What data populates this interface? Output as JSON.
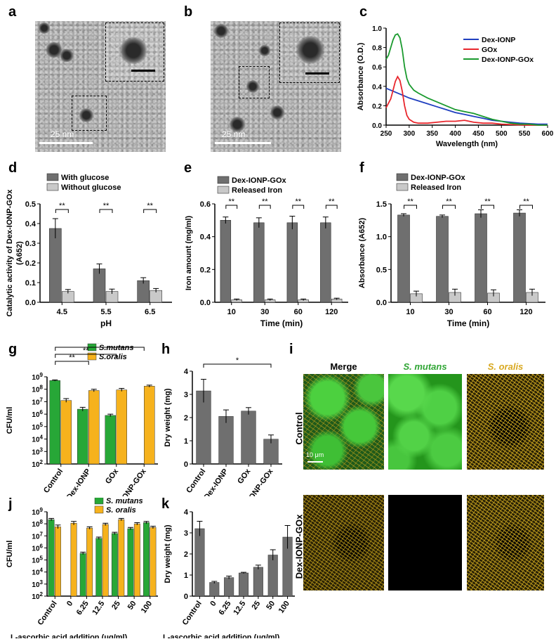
{
  "panel_labels": {
    "a": "a",
    "b": "b",
    "c": "c",
    "d": "d",
    "e": "e",
    "f": "f",
    "g": "g",
    "h": "h",
    "i": "i",
    "j": "j",
    "k": "k"
  },
  "tem": {
    "a_scale_text": "25 nm",
    "b_scale_text": "25 nm"
  },
  "micrographs": {
    "col_merge": "Merge",
    "col_smutans": "S. mutans",
    "col_soralis": "S. oralis",
    "row_control": "Control",
    "row_treated": "Dex-IONP-GOx",
    "scale_text": "10 μm",
    "colors": {
      "green": "#35b233",
      "yellow": "#d9b21a",
      "black": "#000000"
    }
  },
  "colors": {
    "dex_ionp": "#1f3fbf",
    "gox": "#e8262c",
    "dex_ionp_gox": "#1a9a2e",
    "dark_bar": "#6f6f6f",
    "light_bar": "#c9c9c9",
    "smutans": "#27a737",
    "soralis": "#f6b21d"
  },
  "chart_data": [
    {
      "id": "c",
      "type": "line",
      "xlabel": "Wavelength (nm)",
      "ylabel": "Absorbance (O.D.)",
      "xlim": [
        250,
        600
      ],
      "ylim": [
        0.0,
        1.0
      ],
      "xticks": [
        "250",
        "300",
        "350",
        "400",
        "450",
        "500",
        "550",
        "600"
      ],
      "yticks": [
        "0.0",
        "0.2",
        "0.4",
        "0.6",
        "0.8",
        "1.0"
      ],
      "legend_position": "top-right",
      "series": [
        {
          "name": "Dex-IONP",
          "color": "#1f3fbf",
          "x": [
            250,
            260,
            270,
            280,
            290,
            300,
            320,
            340,
            360,
            380,
            400,
            420,
            440,
            460,
            480,
            500,
            520,
            540,
            560,
            580,
            600
          ],
          "y": [
            0.38,
            0.36,
            0.34,
            0.32,
            0.3,
            0.28,
            0.25,
            0.22,
            0.19,
            0.16,
            0.13,
            0.11,
            0.09,
            0.07,
            0.05,
            0.04,
            0.03,
            0.02,
            0.015,
            0.01,
            0.01
          ]
        },
        {
          "name": "GOx",
          "color": "#e8262c",
          "x": [
            250,
            260,
            265,
            270,
            275,
            280,
            285,
            290,
            295,
            300,
            310,
            320,
            340,
            360,
            380,
            400,
            420,
            440,
            460,
            480,
            500,
            550,
            600
          ],
          "y": [
            0.18,
            0.27,
            0.36,
            0.45,
            0.5,
            0.46,
            0.35,
            0.2,
            0.1,
            0.06,
            0.03,
            0.02,
            0.02,
            0.03,
            0.04,
            0.04,
            0.05,
            0.03,
            0.02,
            0.02,
            0.01,
            0.0,
            0.0
          ]
        },
        {
          "name": "Dex-IONP-GOx",
          "color": "#1a9a2e",
          "x": [
            250,
            255,
            260,
            265,
            270,
            275,
            280,
            285,
            290,
            295,
            300,
            310,
            320,
            340,
            360,
            380,
            400,
            420,
            440,
            460,
            480,
            500,
            520,
            540,
            560,
            580,
            600
          ],
          "y": [
            0.68,
            0.72,
            0.8,
            0.88,
            0.93,
            0.94,
            0.9,
            0.78,
            0.6,
            0.48,
            0.42,
            0.36,
            0.33,
            0.28,
            0.24,
            0.2,
            0.16,
            0.14,
            0.12,
            0.09,
            0.06,
            0.04,
            0.02,
            0.01,
            0.01,
            0.0,
            0.0
          ]
        }
      ]
    },
    {
      "id": "d",
      "type": "bar",
      "xlabel": "pH",
      "ylabel": "Catalytic activity of Dex-IONP-GOx",
      "ylabel2": "(A652)",
      "categories": [
        "4.5",
        "5.5",
        "6.5"
      ],
      "ylim": [
        0.0,
        0.5
      ],
      "yticks": [
        "0.0",
        "0.1",
        "0.2",
        "0.3",
        "0.4",
        "0.5"
      ],
      "legend_position": "top",
      "series": [
        {
          "name": "With glucose",
          "values": [
            0.375,
            0.17,
            0.11
          ],
          "errors": [
            0.05,
            0.025,
            0.015
          ]
        },
        {
          "name": "Without glucose",
          "values": [
            0.055,
            0.055,
            0.06
          ],
          "errors": [
            0.01,
            0.012,
            0.01
          ]
        }
      ],
      "significance": [
        "**",
        "**",
        "**"
      ]
    },
    {
      "id": "e",
      "type": "bar",
      "xlabel": "Time (min)",
      "ylabel": "Iron amount (mg/ml)",
      "categories": [
        "10",
        "30",
        "60",
        "120"
      ],
      "ylim": [
        0.0,
        0.6
      ],
      "yticks": [
        "0.0",
        "0.2",
        "0.4",
        "0.6"
      ],
      "legend_position": "top",
      "series": [
        {
          "name": "Dex-IONP-GOx",
          "values": [
            0.5,
            0.485,
            0.485,
            0.485
          ],
          "errors": [
            0.02,
            0.03,
            0.04,
            0.035
          ]
        },
        {
          "name": "Released Iron",
          "values": [
            0.015,
            0.015,
            0.015,
            0.02
          ],
          "errors": [
            0.005,
            0.005,
            0.005,
            0.005
          ]
        }
      ],
      "significance": [
        "**",
        "**",
        "**",
        "**"
      ]
    },
    {
      "id": "f",
      "type": "bar",
      "xlabel": "Time (min)",
      "ylabel": "Absorbance (A652)",
      "categories": [
        "10",
        "30",
        "60",
        "120"
      ],
      "ylim": [
        0.0,
        1.5
      ],
      "yticks": [
        "0.0",
        "0.5",
        "1.0",
        "1.5"
      ],
      "legend_position": "top",
      "series": [
        {
          "name": "Dex-IONP-GOx",
          "values": [
            1.33,
            1.31,
            1.35,
            1.36
          ],
          "errors": [
            0.02,
            0.02,
            0.06,
            0.05
          ]
        },
        {
          "name": "Released Iron",
          "values": [
            0.13,
            0.15,
            0.14,
            0.15
          ],
          "errors": [
            0.04,
            0.05,
            0.05,
            0.05
          ]
        }
      ],
      "significance": [
        "**",
        "**",
        "**",
        "**"
      ]
    },
    {
      "id": "g",
      "type": "bar",
      "scale": "log",
      "ylabel": "CFU/ml",
      "categories": [
        "Control",
        "Dex-IONP",
        "GOx",
        "Dex-IONP-GOx"
      ],
      "yticks": [
        "10^2",
        "10^3",
        "10^4",
        "10^5",
        "10^6",
        "10^7",
        "10^8",
        "10^9"
      ],
      "ylog_range": [
        2,
        9
      ],
      "legend_position": "top-right",
      "series": [
        {
          "name": "S.mutans",
          "log_values": [
            8.7,
            6.4,
            5.9,
            null
          ],
          "log_errors": [
            0.05,
            0.15,
            0.1,
            0
          ]
        },
        {
          "name": "S.oralis",
          "log_values": [
            7.1,
            7.9,
            7.95,
            8.25
          ],
          "log_errors": [
            0.15,
            0.1,
            0.12,
            0.08
          ]
        }
      ],
      "significance_brackets": [
        {
          "from": 0,
          "to": 1,
          "label": "**"
        },
        {
          "from": 0,
          "to": 2,
          "label": "**"
        },
        {
          "from": 0,
          "to": 3,
          "label": "**"
        }
      ]
    },
    {
      "id": "h",
      "type": "bar",
      "ylabel": "Dry weight (mg)",
      "categories": [
        "Control",
        "Dex-IONP",
        "GOx",
        "Dex-IONP-GOx"
      ],
      "ylim": [
        0,
        4
      ],
      "yticks": [
        "0",
        "1",
        "2",
        "3",
        "4"
      ],
      "series": [
        {
          "name": "",
          "values": [
            3.15,
            2.05,
            2.28,
            1.07
          ],
          "errors": [
            0.5,
            0.28,
            0.15,
            0.18
          ]
        }
      ],
      "significance_brackets": [
        {
          "from": 0,
          "to": 3,
          "label": "*"
        }
      ]
    },
    {
      "id": "j",
      "type": "bar",
      "scale": "log",
      "ylabel": "CFU/ml",
      "xlabel": "L-ascorbic acid addition (μg/ml)",
      "categories": [
        "Control",
        "0",
        "6.25",
        "12.5",
        "25",
        "50",
        "100"
      ],
      "yticks": [
        "10^2",
        "10^3",
        "10^4",
        "10^5",
        "10^6",
        "10^7",
        "10^8",
        "10^9"
      ],
      "ylog_range": [
        2,
        9
      ],
      "legend_position": "top-right",
      "series": [
        {
          "name": "S. mutans",
          "log_values": [
            8.35,
            null,
            5.55,
            6.8,
            7.2,
            7.6,
            8.1
          ],
          "log_errors": [
            0.1,
            0,
            0.1,
            0.1,
            0.1,
            0.1,
            0.1
          ]
        },
        {
          "name": "S. oralis",
          "log_values": [
            7.75,
            8.05,
            7.65,
            7.95,
            8.35,
            8.0,
            7.7
          ],
          "log_errors": [
            0.15,
            0.15,
            0.1,
            0.1,
            0.1,
            0.1,
            0.1
          ]
        }
      ]
    },
    {
      "id": "k",
      "type": "bar",
      "ylabel": "Dry weight (mg)",
      "xlabel": "L-ascorbic acid addition (μg/ml)",
      "categories": [
        "Control",
        "0",
        "6.25",
        "12.5",
        "25",
        "50",
        "100"
      ],
      "ylim": [
        0,
        4
      ],
      "yticks": [
        "0",
        "1",
        "2",
        "3",
        "4"
      ],
      "series": [
        {
          "name": "",
          "values": [
            3.2,
            0.65,
            0.88,
            1.1,
            1.37,
            1.95,
            2.8
          ],
          "errors": [
            0.35,
            0.05,
            0.07,
            0.03,
            0.1,
            0.25,
            0.55
          ]
        }
      ]
    }
  ]
}
